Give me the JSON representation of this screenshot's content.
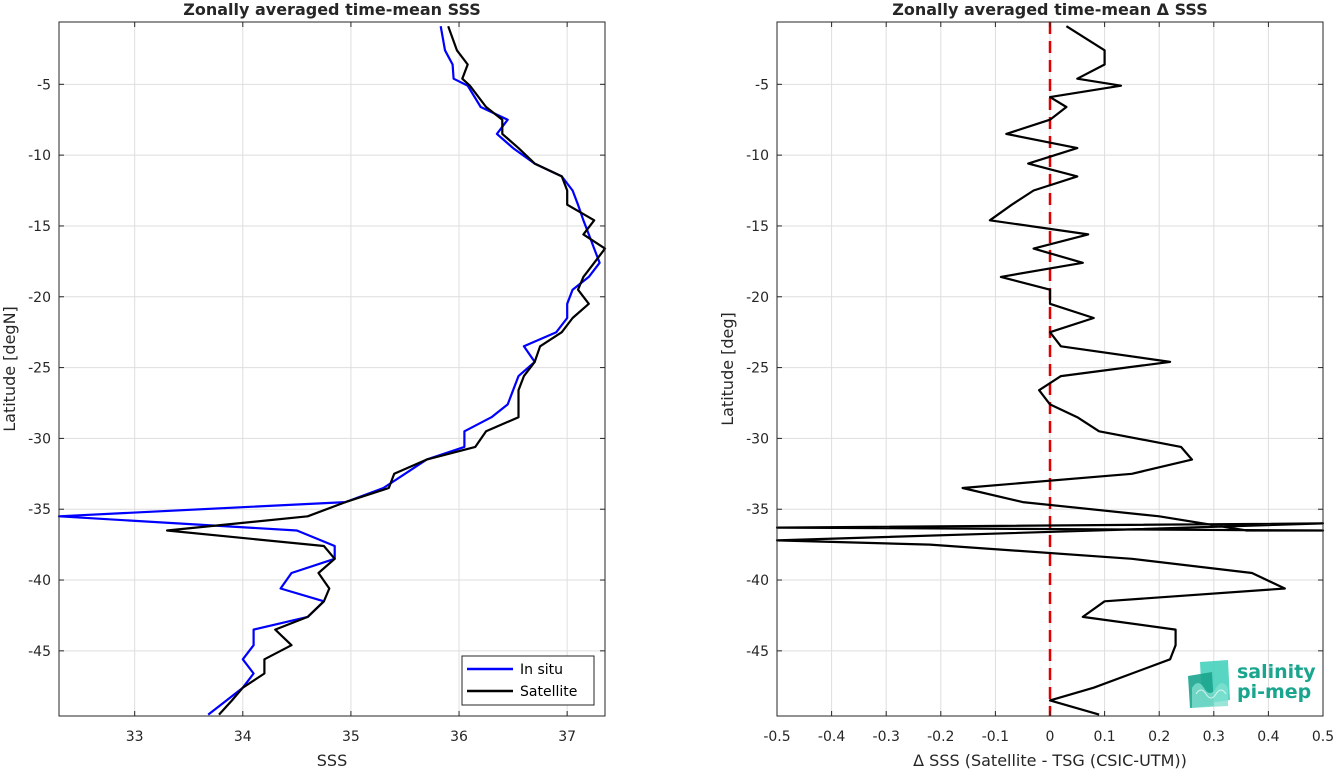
{
  "logo": {
    "line1": "salinity",
    "line2": "pi-mep",
    "color": "#1aa58f"
  },
  "chart_data": [
    {
      "type": "line",
      "title": "Zonally averaged time-mean SSS",
      "xlabel": "SSS",
      "ylabel": "Latitude [degN]",
      "xlim": [
        32.3,
        37.35
      ],
      "ylim": [
        -49.6,
        -0.6
      ],
      "xticks": [
        33,
        34,
        35,
        36,
        37
      ],
      "yticks": [
        -5,
        -10,
        -15,
        -20,
        -25,
        -30,
        -35,
        -40,
        -45
      ],
      "grid": true,
      "legend_position": "bottom-right",
      "series": [
        {
          "name": "In situ",
          "color": "#0000ff",
          "points": [
            [
              35.83,
              -0.9
            ],
            [
              35.87,
              -2.6
            ],
            [
              35.94,
              -3.6
            ],
            [
              35.95,
              -4.6
            ],
            [
              36.08,
              -5.1
            ],
            [
              36.2,
              -6.6
            ],
            [
              36.45,
              -7.5
            ],
            [
              36.35,
              -8.5
            ],
            [
              36.5,
              -9.5
            ],
            [
              36.7,
              -10.6
            ],
            [
              36.95,
              -11.5
            ],
            [
              37.05,
              -12.5
            ],
            [
              37.1,
              -13.5
            ],
            [
              37.15,
              -14.6
            ],
            [
              37.2,
              -15.6
            ],
            [
              37.25,
              -16.6
            ],
            [
              37.3,
              -17.6
            ],
            [
              37.2,
              -18.6
            ],
            [
              37.05,
              -19.5
            ],
            [
              37.0,
              -20.5
            ],
            [
              37.0,
              -21.5
            ],
            [
              36.9,
              -22.5
            ],
            [
              36.6,
              -23.5
            ],
            [
              36.7,
              -24.6
            ],
            [
              36.55,
              -25.6
            ],
            [
              36.5,
              -26.6
            ],
            [
              36.45,
              -27.6
            ],
            [
              36.3,
              -28.5
            ],
            [
              36.05,
              -29.5
            ],
            [
              36.05,
              -30.6
            ],
            [
              35.7,
              -31.5
            ],
            [
              35.5,
              -32.5
            ],
            [
              35.3,
              -33.5
            ],
            [
              34.95,
              -34.5
            ],
            [
              32.3,
              -35.5
            ],
            [
              34.5,
              -36.5
            ],
            [
              34.85,
              -37.6
            ],
            [
              34.85,
              -38.5
            ],
            [
              34.45,
              -39.5
            ],
            [
              34.35,
              -40.6
            ],
            [
              34.75,
              -41.5
            ],
            [
              34.6,
              -42.6
            ],
            [
              34.1,
              -43.5
            ],
            [
              34.1,
              -44.6
            ],
            [
              34.0,
              -45.6
            ],
            [
              34.1,
              -46.6
            ],
            [
              34.0,
              -47.6
            ],
            [
              33.85,
              -48.5
            ],
            [
              33.68,
              -49.5
            ]
          ]
        },
        {
          "name": "Satellite",
          "color": "#000000",
          "points": [
            [
              35.9,
              -0.9
            ],
            [
              35.98,
              -2.6
            ],
            [
              36.08,
              -3.6
            ],
            [
              36.03,
              -4.6
            ],
            [
              36.1,
              -5.1
            ],
            [
              36.25,
              -6.6
            ],
            [
              36.4,
              -7.5
            ],
            [
              36.4,
              -8.5
            ],
            [
              36.55,
              -9.5
            ],
            [
              36.7,
              -10.6
            ],
            [
              36.95,
              -11.5
            ],
            [
              37.0,
              -12.5
            ],
            [
              37.0,
              -13.5
            ],
            [
              37.25,
              -14.6
            ],
            [
              37.15,
              -15.6
            ],
            [
              37.35,
              -16.6
            ],
            [
              37.25,
              -17.6
            ],
            [
              37.15,
              -18.6
            ],
            [
              37.1,
              -19.5
            ],
            [
              37.2,
              -20.5
            ],
            [
              37.05,
              -21.5
            ],
            [
              36.95,
              -22.5
            ],
            [
              36.75,
              -23.5
            ],
            [
              36.7,
              -24.6
            ],
            [
              36.6,
              -25.6
            ],
            [
              36.55,
              -26.6
            ],
            [
              36.55,
              -27.6
            ],
            [
              36.55,
              -28.5
            ],
            [
              36.25,
              -29.5
            ],
            [
              36.15,
              -30.6
            ],
            [
              35.7,
              -31.5
            ],
            [
              35.4,
              -32.5
            ],
            [
              35.35,
              -33.5
            ],
            [
              34.95,
              -34.5
            ],
            [
              34.6,
              -35.5
            ],
            [
              33.3,
              -36.5
            ],
            [
              34.75,
              -37.6
            ],
            [
              34.85,
              -38.5
            ],
            [
              34.7,
              -39.5
            ],
            [
              34.8,
              -40.6
            ],
            [
              34.75,
              -41.5
            ],
            [
              34.6,
              -42.6
            ],
            [
              34.3,
              -43.5
            ],
            [
              34.45,
              -44.6
            ],
            [
              34.2,
              -45.6
            ],
            [
              34.2,
              -46.6
            ],
            [
              34.0,
              -47.6
            ],
            [
              33.9,
              -48.5
            ],
            [
              33.78,
              -49.5
            ]
          ]
        }
      ]
    },
    {
      "type": "line",
      "title": "Zonally averaged time-mean Δ SSS",
      "xlabel": "Δ SSS (Satellite - TSG (CSIC-UTM))",
      "ylabel": "Latitude [deg]",
      "xlim": [
        -0.5,
        0.5
      ],
      "ylim": [
        -49.6,
        -0.6
      ],
      "xticks": [
        -0.5,
        -0.4,
        -0.3,
        -0.2,
        -0.1,
        0,
        0.1,
        0.2,
        0.3,
        0.4,
        0.5
      ],
      "xtick_labels": [
        "-0.5",
        "-0.4",
        "-0.3",
        "-0.2",
        "-0.1",
        "0",
        "0.1",
        "0.2",
        "0.3",
        "0.4",
        "0.5"
      ],
      "yticks": [
        -5,
        -10,
        -15,
        -20,
        -25,
        -30,
        -35,
        -40,
        -45
      ],
      "grid": true,
      "reference_line": {
        "x": 0,
        "color": "#e00000",
        "style": "dashed"
      },
      "series": [
        {
          "color": "#000000",
          "points": [
            [
              0.03,
              -0.9
            ],
            [
              0.1,
              -2.6
            ],
            [
              0.1,
              -3.6
            ],
            [
              0.05,
              -4.6
            ],
            [
              0.13,
              -5.1
            ],
            [
              0.0,
              -5.9
            ],
            [
              0.03,
              -6.6
            ],
            [
              0.0,
              -7.5
            ],
            [
              -0.08,
              -8.5
            ],
            [
              0.05,
              -9.5
            ],
            [
              -0.04,
              -10.6
            ],
            [
              0.05,
              -11.5
            ],
            [
              -0.03,
              -12.5
            ],
            [
              -0.07,
              -13.5
            ],
            [
              -0.11,
              -14.6
            ],
            [
              0.07,
              -15.6
            ],
            [
              -0.03,
              -16.6
            ],
            [
              0.06,
              -17.6
            ],
            [
              -0.09,
              -18.6
            ],
            [
              0.0,
              -19.5
            ],
            [
              0.0,
              -20.5
            ],
            [
              0.08,
              -21.5
            ],
            [
              0.0,
              -22.5
            ],
            [
              0.02,
              -23.5
            ],
            [
              0.22,
              -24.6
            ],
            [
              0.02,
              -25.6
            ],
            [
              -0.02,
              -26.6
            ],
            [
              0.0,
              -27.6
            ],
            [
              0.05,
              -28.5
            ],
            [
              0.09,
              -29.5
            ],
            [
              0.24,
              -30.6
            ],
            [
              0.26,
              -31.5
            ],
            [
              0.15,
              -32.5
            ],
            [
              -0.16,
              -33.5
            ],
            [
              -0.05,
              -34.5
            ],
            [
              0.2,
              -35.5
            ],
            [
              0.36,
              -36.5
            ],
            [
              0.5,
              -36.5
            ],
            [
              -0.5,
              -36.3
            ],
            [
              0.5,
              -36.0
            ],
            [
              -0.5,
              -37.2
            ],
            [
              -0.22,
              -37.5
            ],
            [
              0.15,
              -38.5
            ],
            [
              0.37,
              -39.5
            ],
            [
              0.43,
              -40.6
            ],
            [
              0.1,
              -41.5
            ],
            [
              0.06,
              -42.6
            ],
            [
              0.23,
              -43.5
            ],
            [
              0.23,
              -44.6
            ],
            [
              0.22,
              -45.6
            ],
            [
              0.15,
              -46.6
            ],
            [
              0.08,
              -47.6
            ],
            [
              0.0,
              -48.5
            ],
            [
              0.09,
              -49.5
            ]
          ]
        }
      ]
    }
  ]
}
